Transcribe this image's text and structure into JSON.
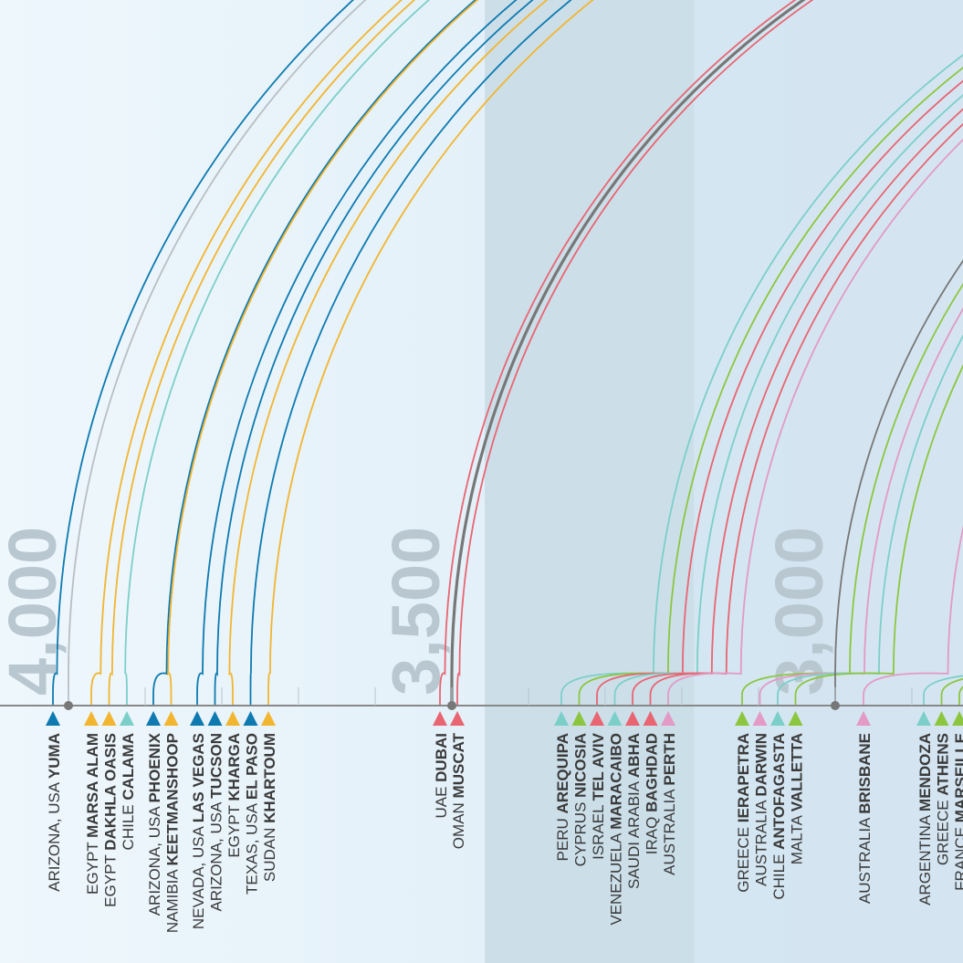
{
  "colors": {
    "bg_light": "#eef7fc",
    "bg_mid": "#dcecf7",
    "band": "#c8dce6",
    "axis": "#888888",
    "tick_label": "#b9c7d0",
    "text": "#3a3a3a",
    "blue": "#0e7ab0",
    "yellow": "#f2b530",
    "teal": "#7ccfc8",
    "green": "#8cc63f",
    "red": "#e96572",
    "pink": "#e39ac5",
    "gray": "#777777",
    "lightgray": "#b8bfc4"
  },
  "chart_data": {
    "type": "arc",
    "axis": {
      "ticks": [
        "4,000",
        "3,500",
        "3,000"
      ],
      "xlim": [
        2640,
        4050
      ]
    },
    "series": [
      {
        "country": "ARIZONA, USA",
        "city": "YUMA",
        "value": 4015,
        "color": "blue",
        "marker": "triangle"
      },
      {
        "country": "",
        "city": "",
        "value": 4000,
        "color": "lightgray",
        "marker": "dot"
      },
      {
        "country": "EGYPT",
        "city": "MARSA ALAM",
        "value": 3958,
        "color": "yellow",
        "marker": "triangle"
      },
      {
        "country": "EGYPT",
        "city": "DAKHLA OASIS",
        "value": 3943,
        "color": "yellow",
        "marker": "triangle"
      },
      {
        "country": "CHILE",
        "city": "CALAMA",
        "value": 3926,
        "color": "teal",
        "marker": "triangle"
      },
      {
        "country": "ARIZONA, USA",
        "city": "PHOENIX",
        "value": 3872,
        "color": "blue",
        "marker": "triangle"
      },
      {
        "country": "NAMIBIA",
        "city": "KEETMANSHOOP",
        "value": 3870,
        "color": "yellow",
        "marker": "triangle"
      },
      {
        "country": "NEVADA, USA",
        "city": "LAS VEGAS",
        "value": 3825,
        "color": "blue",
        "marker": "triangle"
      },
      {
        "country": "ARIZONA, USA",
        "city": "TUCSON",
        "value": 3806,
        "color": "blue",
        "marker": "triangle"
      },
      {
        "country": "EGYPT",
        "city": "KHARGA",
        "value": 3790,
        "color": "yellow",
        "marker": "triangle"
      },
      {
        "country": "TEXAS, USA",
        "city": "EL PASO",
        "value": 3762,
        "color": "blue",
        "marker": "triangle"
      },
      {
        "country": "SUDAN",
        "city": "KHARTOUM",
        "value": 3737,
        "color": "yellow",
        "marker": "triangle"
      },
      {
        "country": "UAE",
        "city": "DUBAI",
        "value": 3509,
        "color": "red",
        "marker": "triangle"
      },
      {
        "country": "",
        "city": "",
        "value": 3500,
        "color": "gray",
        "marker": "dot",
        "thick": true
      },
      {
        "country": "OMAN",
        "city": "MUSCAT",
        "value": 3490,
        "color": "red",
        "marker": "triangle"
      },
      {
        "country": "PERU",
        "city": "AREQUIPA",
        "value": 3237,
        "color": "teal",
        "marker": "triangle"
      },
      {
        "country": "CYPRUS",
        "city": "NICOSIA",
        "value": 3218,
        "color": "green",
        "marker": "triangle"
      },
      {
        "country": "ISRAEL",
        "city": "TEL AVIV",
        "value": 3199,
        "color": "red",
        "marker": "triangle"
      },
      {
        "country": "VENEZUELA",
        "city": "MARACAIBO",
        "value": 3180,
        "color": "teal",
        "marker": "triangle"
      },
      {
        "country": "SAUDI ARABIA",
        "city": "ABHA",
        "value": 3161,
        "color": "red",
        "marker": "triangle"
      },
      {
        "country": "IRAQ",
        "city": "BAGHDAD",
        "value": 3142,
        "color": "red",
        "marker": "triangle"
      },
      {
        "country": "AUSTRALIA",
        "city": "PERTH",
        "value": 3123,
        "color": "pink",
        "marker": "triangle"
      },
      {
        "country": "GREECE",
        "city": "IERAPETRA",
        "value": 2981,
        "color": "green",
        "marker": "triangle"
      },
      {
        "country": "AUSTRALIA",
        "city": "DARWIN",
        "value": 2962,
        "color": "pink",
        "marker": "triangle"
      },
      {
        "country": "CHILE",
        "city": "ANTOFAGASTA",
        "value": 2943,
        "color": "teal",
        "marker": "triangle"
      },
      {
        "country": "MALTA",
        "city": "VALLETTA",
        "value": 2924,
        "color": "green",
        "marker": "triangle"
      },
      {
        "country": "",
        "city": "",
        "value": 3000,
        "color": "gray",
        "marker": "dot"
      },
      {
        "country": "AUSTRALIA",
        "city": "BRISBANE",
        "value": 2853,
        "color": "pink",
        "marker": "triangle"
      },
      {
        "country": "ARGENTINA",
        "city": "MENDOZA",
        "value": 2722,
        "color": "teal",
        "marker": "triangle"
      },
      {
        "country": "GREECE",
        "city": "ATHENS",
        "value": 2703,
        "color": "green",
        "marker": "triangle"
      },
      {
        "country": "FRANCE",
        "city": "MARSEILLE",
        "value": 2684,
        "color": "green",
        "marker": "triangle"
      }
    ]
  }
}
